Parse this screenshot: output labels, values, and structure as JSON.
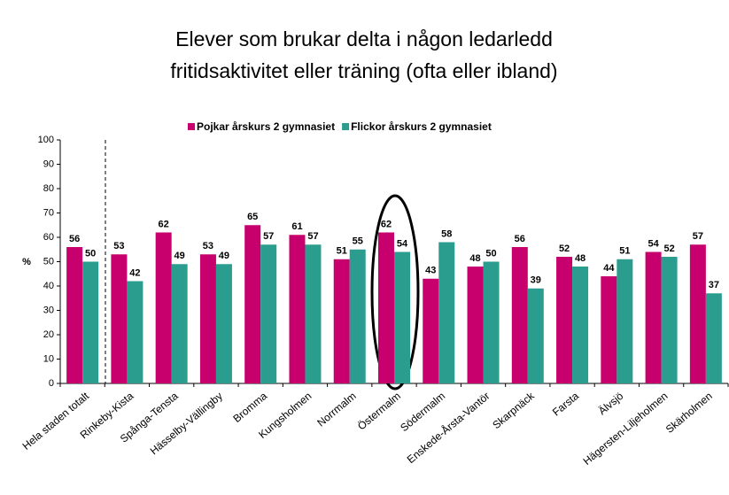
{
  "chart_data": {
    "type": "bar",
    "title": [
      "Elever som brukar delta i någon ledarledd",
      "fritidsaktivitet eller träning (ofta eller ibland)"
    ],
    "y_label": "%",
    "categories": [
      "Hela staden totalt",
      "Rinkeby-Kista",
      "Spånga-Tensta",
      "Hässelby-Vällingby",
      "Bromma",
      "Kungsholmen",
      "Norrmalm",
      "Östermalm",
      "Södermalm",
      "Enskede-Årsta-Vantör",
      "Skarpnäck",
      "Farsta",
      "Älvsjö",
      "Hägersten-Liljeholmen",
      "Skärholmen"
    ],
    "series": [
      {
        "name": "Pojkar årskurs 2 gymnasiet",
        "color": "#c8006e",
        "values": [
          56,
          53,
          62,
          53,
          65,
          61,
          51,
          62,
          43,
          48,
          56,
          52,
          44,
          54,
          57
        ]
      },
      {
        "name": "Flickor årskurs 2 gymnasiet",
        "color": "#2a9d8f",
        "values": [
          50,
          42,
          49,
          49,
          57,
          57,
          55,
          54,
          58,
          50,
          39,
          48,
          51,
          52,
          37
        ]
      }
    ],
    "ylim": [
      0,
      100
    ],
    "yticks": [
      0,
      10,
      20,
      30,
      40,
      50,
      60,
      70,
      80,
      90,
      100
    ],
    "legend": "top"
  }
}
